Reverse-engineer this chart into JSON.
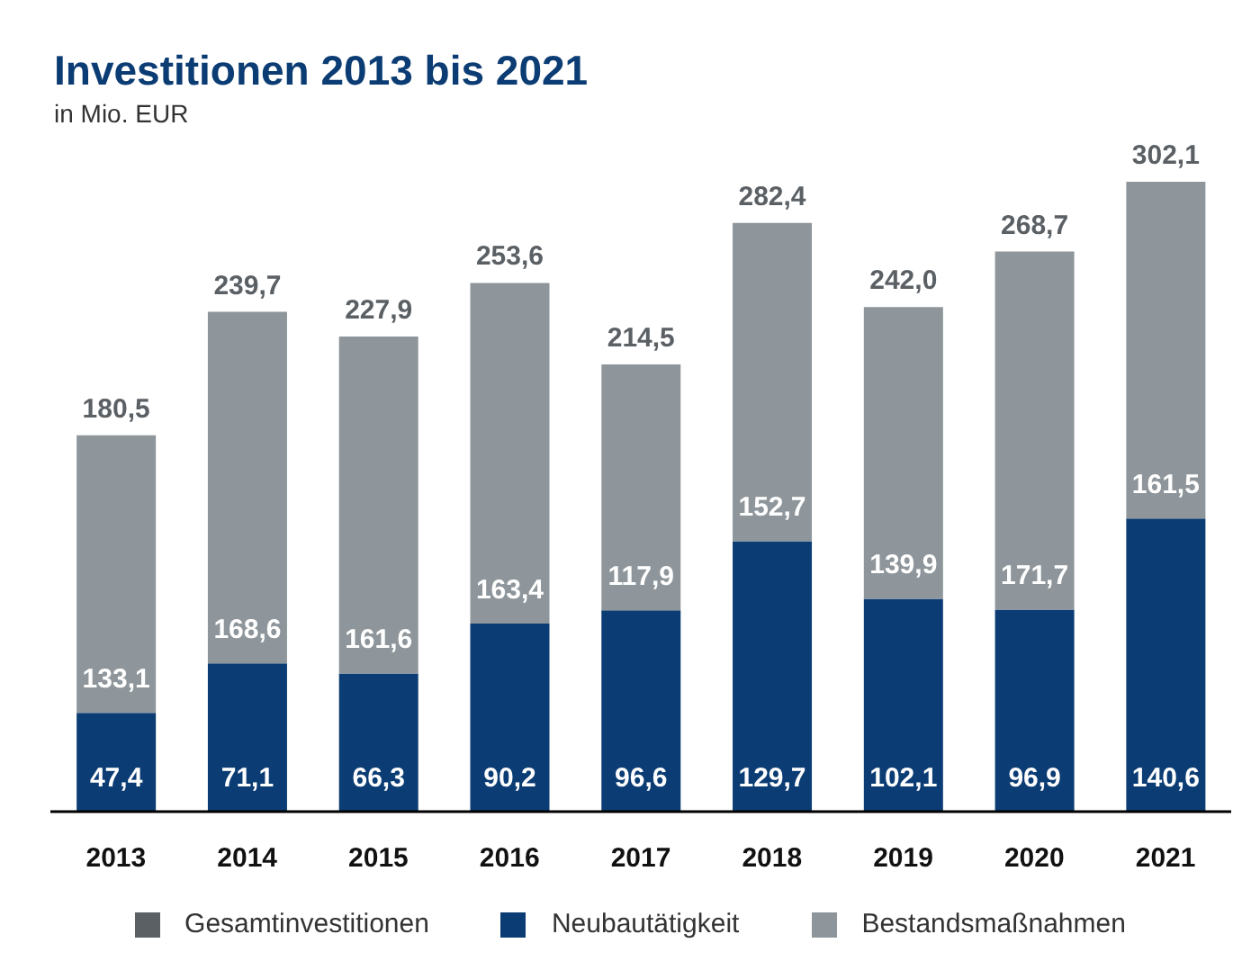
{
  "chart_data": {
    "type": "bar",
    "title": "Investitionen 2013 bis 2021",
    "subtitle": "in Mio. EUR",
    "categories": [
      "2013",
      "2014",
      "2015",
      "2016",
      "2017",
      "2018",
      "2019",
      "2020",
      "2021"
    ],
    "stacked": true,
    "series": [
      {
        "name": "Gesamtinvestitionen",
        "color": "#5b6065",
        "values": [
          null,
          null,
          null,
          null,
          null,
          null,
          null,
          null,
          null
        ]
      },
      {
        "name": "Neubautätigkeit",
        "color": "#0b3c73",
        "values": [
          47.4,
          71.1,
          66.3,
          90.2,
          96.6,
          129.7,
          102.1,
          96.9,
          140.6
        ],
        "value_labels": [
          "47,4",
          "71,1",
          "66,3",
          "90,2",
          "96,6",
          "129,7",
          "102,1",
          "96,9",
          "140,6"
        ]
      },
      {
        "name": "Bestandsmaßnahmen",
        "color": "#8e969b",
        "values": [
          133.1,
          168.6,
          161.6,
          163.4,
          117.9,
          152.7,
          139.9,
          171.7,
          161.5
        ],
        "value_labels": [
          "133,1",
          "168,6",
          "161,6",
          "163,4",
          "117,9",
          "152,7",
          "139,9",
          "171,7",
          "161,5"
        ]
      }
    ],
    "totals": [
      "180,5",
      "239,7",
      "227,9",
      "253,6",
      "214,5",
      "282,4",
      "242,0",
      "268,7",
      "302,1"
    ],
    "tick_labels": "x",
    "legend": "bottom"
  }
}
